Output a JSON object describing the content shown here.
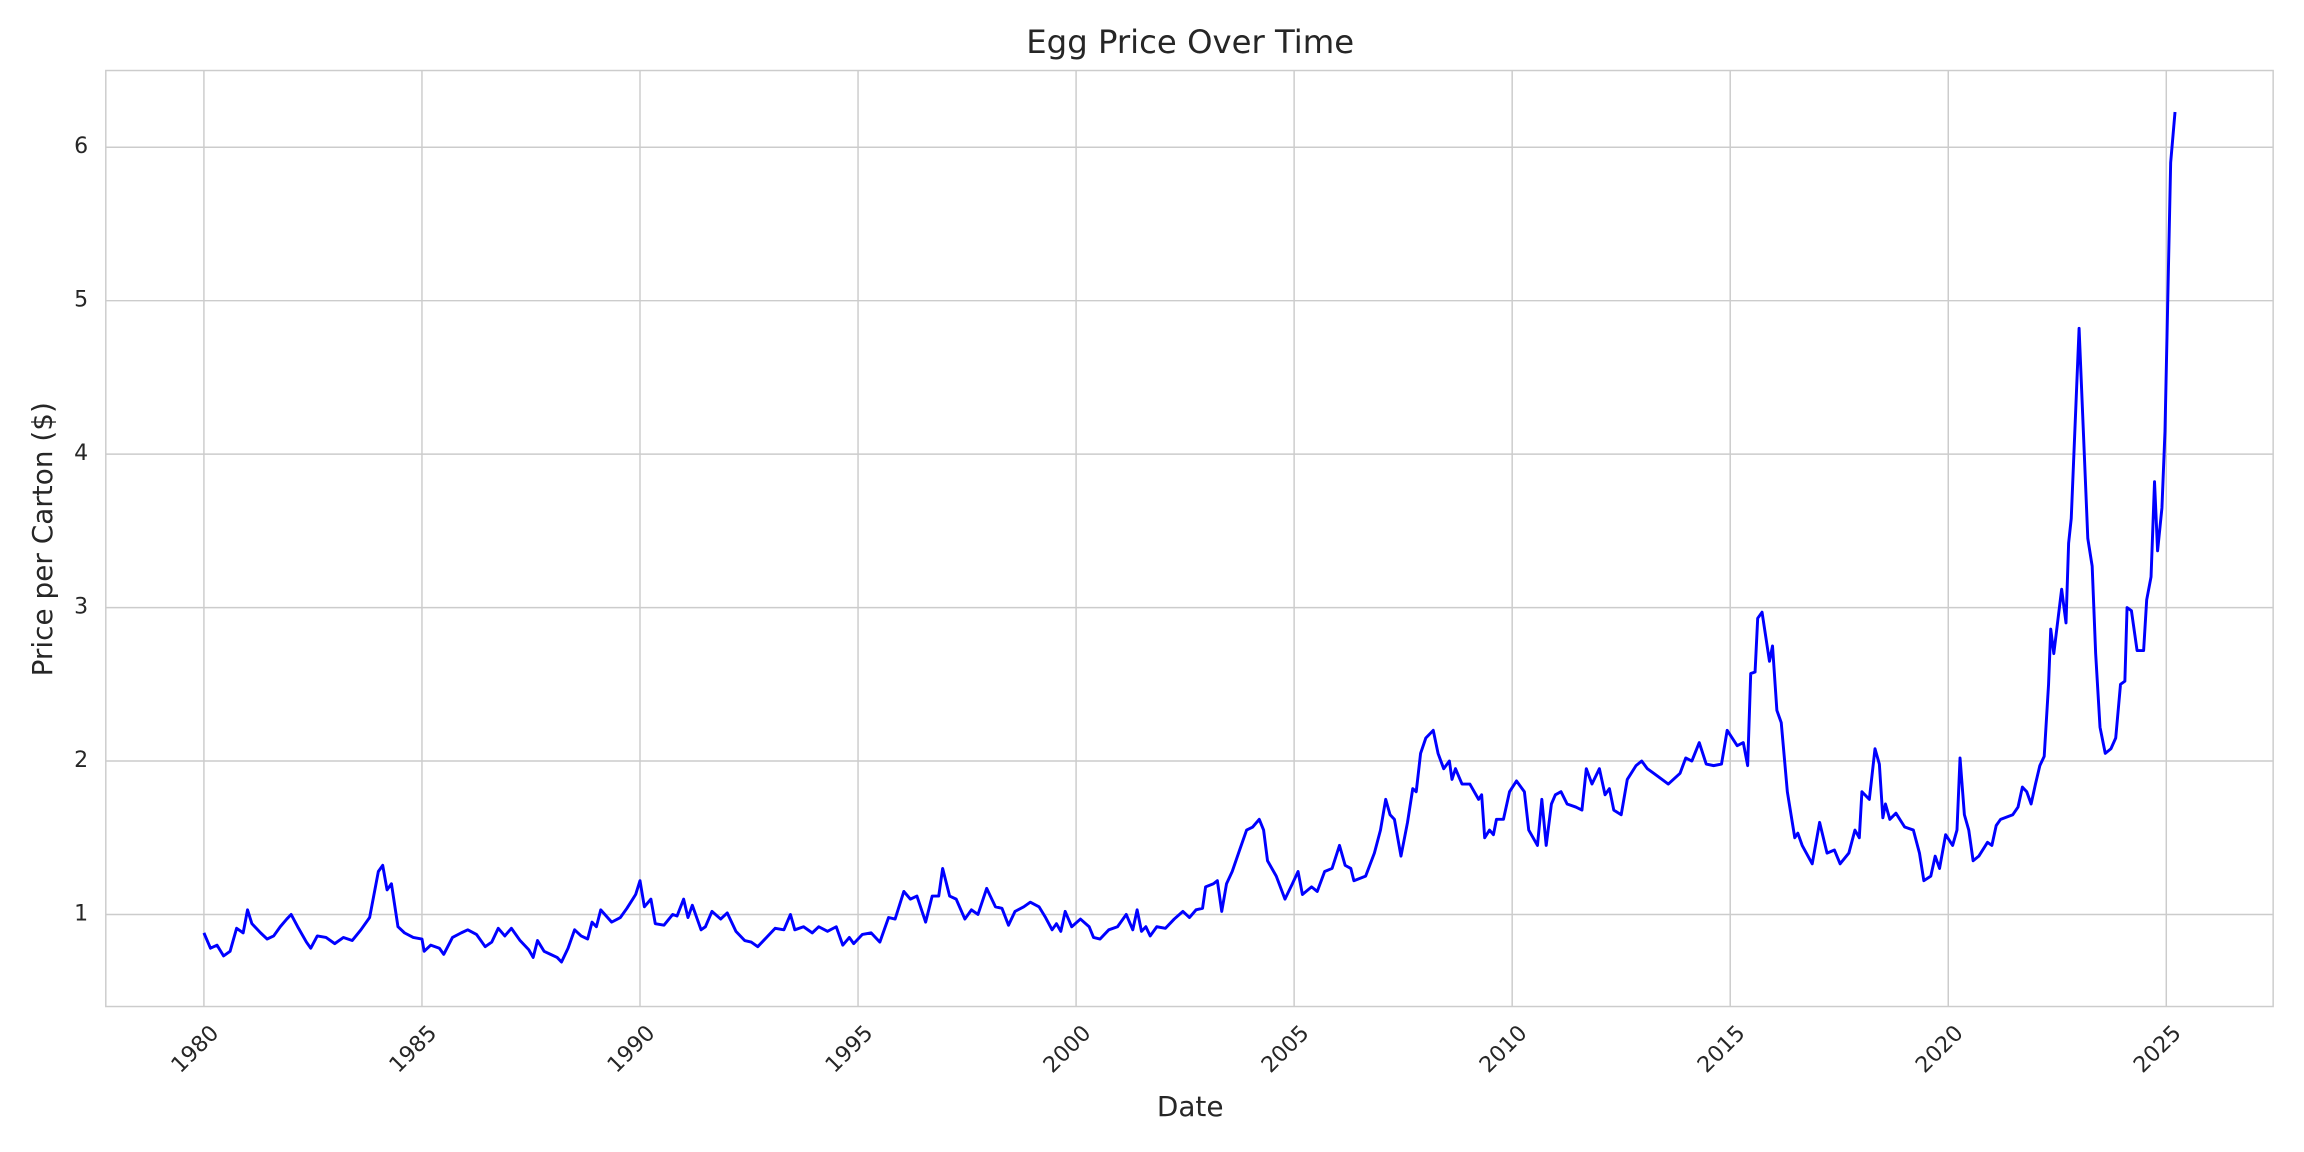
{
  "chart_data": {
    "type": "line",
    "title": "Egg Price Over Time",
    "xlabel": "Date",
    "ylabel": "Price per Carton ($)",
    "color": "#0000ff",
    "grid": true,
    "xlim": [
      1977.75,
      2027.45
    ],
    "xticks": [
      1980,
      1985,
      1990,
      1995,
      2000,
      2005,
      2010,
      2015,
      2020,
      2025
    ],
    "ylim": [
      0.4,
      6.5
    ],
    "yticks": [
      1,
      2,
      3,
      4,
      5,
      6
    ],
    "x": [
      1980,
      1980.15,
      1980.3,
      1980.45,
      1980.6,
      1980.75,
      1980.9,
      1981.0,
      1981.1,
      1981.3,
      1981.45,
      1981.6,
      1981.75,
      1981.9,
      1982.0,
      1982.15,
      1982.35,
      1982.45,
      1982.6,
      1982.8,
      1983.0,
      1983.2,
      1983.4,
      1983.6,
      1983.8,
      1984.0,
      1984.1,
      1984.2,
      1984.3,
      1984.45,
      1984.6,
      1984.8,
      1985.0,
      1985.05,
      1985.2,
      1985.4,
      1985.5,
      1985.7,
      1985.9,
      1986.05,
      1986.25,
      1986.45,
      1986.6,
      1986.75,
      1986.9,
      1987.05,
      1987.25,
      1987.45,
      1987.55,
      1987.65,
      1987.8,
      1987.95,
      1988.1,
      1988.2,
      1988.35,
      1988.5,
      1988.65,
      1988.8,
      1988.9,
      1989.0,
      1989.1,
      1989.35,
      1989.55,
      1989.7,
      1989.9,
      1990.0,
      1990.1,
      1990.25,
      1990.35,
      1990.55,
      1990.75,
      1990.85,
      1991.0,
      1991.1,
      1991.2,
      1991.4,
      1991.5,
      1991.65,
      1991.85,
      1992.0,
      1992.2,
      1992.4,
      1992.55,
      1992.7,
      1992.9,
      1993.1,
      1993.3,
      1993.45,
      1993.55,
      1993.75,
      1993.95,
      1994.1,
      1994.3,
      1994.5,
      1994.65,
      1994.8,
      1994.9,
      1995.1,
      1995.3,
      1995.5,
      1995.7,
      1995.85,
      1996.05,
      1996.2,
      1996.35,
      1996.55,
      1996.7,
      1996.85,
      1996.94,
      1997.1,
      1997.25,
      1997.45,
      1997.6,
      1997.75,
      1997.95,
      1998.15,
      1998.3,
      1998.45,
      1998.6,
      1998.8,
      1998.95,
      1999.15,
      1999.3,
      1999.45,
      1999.55,
      1999.65,
      1999.75,
      1999.9,
      2000.1,
      2000.3,
      2000.4,
      2000.55,
      2000.75,
      2000.95,
      2001.15,
      2001.3,
      2001.4,
      2001.5,
      2001.6,
      2001.7,
      2001.85,
      2002.05,
      2002.25,
      2002.45,
      2002.6,
      2002.75,
      2002.9,
      2002.97,
      2003.15,
      2003.24,
      2003.34,
      2003.45,
      2003.58,
      2003.75,
      2003.91,
      2004.05,
      2004.2,
      2004.3,
      2004.39,
      2004.59,
      2004.79,
      2004.96,
      2005.09,
      2005.19,
      2005.4,
      2005.53,
      2005.7,
      2005.87,
      2006.04,
      2006.17,
      2006.3,
      2006.37,
      2006.64,
      2006.84,
      2006.98,
      2007.1,
      2007.2,
      2007.3,
      2007.45,
      2007.6,
      2007.72,
      2007.8,
      2007.9,
      2008.02,
      2008.19,
      2008.3,
      2008.43,
      2008.56,
      2008.62,
      2008.7,
      2008.85,
      2009.03,
      2009.23,
      2009.3,
      2009.37,
      2009.48,
      2009.57,
      2009.64,
      2009.8,
      2009.94,
      2010.1,
      2010.28,
      2010.38,
      2010.58,
      2010.68,
      2010.78,
      2010.9,
      2010.99,
      2011.12,
      2011.26,
      2011.46,
      2011.6,
      2011.7,
      2011.83,
      2012.0,
      2012.13,
      2012.23,
      2012.33,
      2012.5,
      2012.64,
      2012.84,
      2012.97,
      2013.1,
      2013.34,
      2013.58,
      2013.85,
      2013.98,
      2014.12,
      2014.29,
      2014.45,
      2014.62,
      2014.8,
      2014.93,
      2015.16,
      2015.3,
      2015.4,
      2015.47,
      2015.57,
      2015.63,
      2015.73,
      2015.9,
      2015.97,
      2016.07,
      2016.17,
      2016.31,
      2016.48,
      2016.55,
      2016.65,
      2016.88,
      2017.05,
      2017.22,
      2017.39,
      2017.52,
      2017.72,
      2017.86,
      2017.96,
      2018.02,
      2018.19,
      2018.32,
      2018.42,
      2018.5,
      2018.56,
      2018.66,
      2018.8,
      2019.0,
      2019.2,
      2019.34,
      2019.44,
      2019.6,
      2019.7,
      2019.8,
      2019.94,
      2020.1,
      2020.2,
      2020.27,
      2020.37,
      2020.47,
      2020.57,
      2020.7,
      2020.9,
      2021.0,
      2021.1,
      2021.2,
      2021.48,
      2021.6,
      2021.7,
      2021.8,
      2021.9,
      2022.0,
      2022.1,
      2022.2,
      2022.3,
      2022.35,
      2022.42,
      2022.6,
      2022.7,
      2022.76,
      2022.82,
      2023.0,
      2023.2,
      2023.3,
      2023.38,
      2023.48,
      2023.6,
      2023.73,
      2023.84,
      2023.95,
      2024.05,
      2024.1,
      2024.2,
      2024.33,
      2024.48,
      2024.55,
      2024.65,
      2024.73,
      2024.8,
      2024.9,
      2024.97,
      2025.1,
      2025.2
    ],
    "values": [
      0.88,
      0.78,
      0.8,
      0.73,
      0.76,
      0.91,
      0.88,
      1.03,
      0.94,
      0.88,
      0.84,
      0.86,
      0.92,
      0.97,
      1.0,
      0.92,
      0.82,
      0.78,
      0.86,
      0.85,
      0.81,
      0.85,
      0.83,
      0.9,
      0.98,
      1.28,
      1.32,
      1.16,
      1.2,
      0.92,
      0.88,
      0.85,
      0.84,
      0.76,
      0.8,
      0.78,
      0.74,
      0.85,
      0.88,
      0.9,
      0.87,
      0.79,
      0.82,
      0.91,
      0.86,
      0.91,
      0.83,
      0.77,
      0.72,
      0.83,
      0.76,
      0.74,
      0.72,
      0.69,
      0.78,
      0.9,
      0.86,
      0.84,
      0.95,
      0.92,
      1.03,
      0.95,
      0.98,
      1.04,
      1.13,
      1.22,
      1.05,
      1.1,
      0.94,
      0.93,
      1.0,
      0.99,
      1.1,
      0.98,
      1.06,
      0.9,
      0.92,
      1.02,
      0.97,
      1.01,
      0.89,
      0.83,
      0.82,
      0.79,
      0.85,
      0.91,
      0.9,
      1.0,
      0.9,
      0.92,
      0.88,
      0.92,
      0.89,
      0.92,
      0.8,
      0.85,
      0.81,
      0.87,
      0.88,
      0.82,
      0.98,
      0.97,
      1.15,
      1.1,
      1.12,
      0.95,
      1.12,
      1.12,
      1.3,
      1.12,
      1.1,
      0.97,
      1.03,
      1.0,
      1.17,
      1.05,
      1.04,
      0.93,
      1.02,
      1.05,
      1.08,
      1.05,
      0.98,
      0.9,
      0.94,
      0.89,
      1.02,
      0.92,
      0.97,
      0.92,
      0.85,
      0.84,
      0.9,
      0.92,
      1.0,
      0.9,
      1.03,
      0.89,
      0.92,
      0.86,
      0.92,
      0.91,
      0.97,
      1.02,
      0.98,
      1.03,
      1.04,
      1.18,
      1.2,
      1.22,
      1.02,
      1.2,
      1.28,
      1.42,
      1.55,
      1.57,
      1.62,
      1.55,
      1.35,
      1.25,
      1.1,
      1.2,
      1.28,
      1.13,
      1.18,
      1.15,
      1.28,
      1.3,
      1.45,
      1.32,
      1.3,
      1.22,
      1.25,
      1.4,
      1.55,
      1.75,
      1.65,
      1.62,
      1.38,
      1.6,
      1.82,
      1.8,
      2.05,
      2.15,
      2.2,
      2.05,
      1.95,
      2.0,
      1.88,
      1.95,
      1.85,
      1.85,
      1.75,
      1.78,
      1.5,
      1.55,
      1.52,
      1.62,
      1.62,
      1.8,
      1.87,
      1.8,
      1.55,
      1.45,
      1.75,
      1.45,
      1.72,
      1.78,
      1.8,
      1.72,
      1.7,
      1.68,
      1.95,
      1.85,
      1.95,
      1.78,
      1.82,
      1.68,
      1.65,
      1.88,
      1.97,
      2.0,
      1.95,
      1.9,
      1.85,
      1.92,
      2.02,
      2.0,
      2.12,
      1.98,
      1.97,
      1.98,
      2.2,
      2.1,
      2.12,
      1.97,
      2.57,
      2.58,
      2.93,
      2.97,
      2.65,
      2.75,
      2.33,
      2.25,
      1.8,
      1.5,
      1.53,
      1.45,
      1.33,
      1.6,
      1.4,
      1.42,
      1.33,
      1.4,
      1.55,
      1.5,
      1.8,
      1.75,
      2.08,
      1.98,
      1.63,
      1.72,
      1.62,
      1.66,
      1.57,
      1.55,
      1.4,
      1.22,
      1.25,
      1.38,
      1.3,
      1.52,
      1.45,
      1.55,
      2.02,
      1.65,
      1.55,
      1.35,
      1.38,
      1.47,
      1.45,
      1.58,
      1.62,
      1.65,
      1.7,
      1.83,
      1.8,
      1.72,
      1.85,
      1.97,
      2.03,
      2.5,
      2.86,
      2.7,
      3.12,
      2.9,
      3.42,
      3.58,
      4.82,
      3.45,
      3.27,
      2.7,
      2.22,
      2.05,
      2.08,
      2.15,
      2.5,
      2.52,
      3.0,
      2.98,
      2.72,
      2.72,
      3.05,
      3.2,
      3.82,
      3.37,
      3.65,
      4.15,
      5.9,
      6.23
    ]
  }
}
